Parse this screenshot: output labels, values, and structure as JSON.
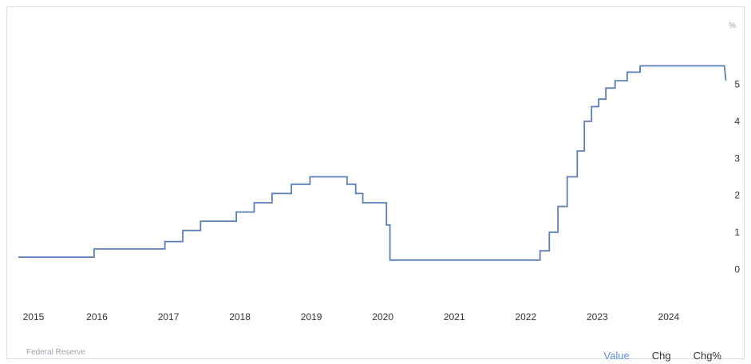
{
  "chart_data": {
    "type": "line",
    "step": true,
    "unit": "%",
    "x_ticks": [
      "2015",
      "2016",
      "2017",
      "2018",
      "2019",
      "2020",
      "2021",
      "2022",
      "2023",
      "2024"
    ],
    "y_ticks": [
      "0",
      "1",
      "2",
      "3",
      "4",
      "5"
    ],
    "xlim": [
      2014.9,
      2024.85
    ],
    "ylim": [
      -0.1,
      5.9
    ],
    "grid": false,
    "color": "#5b7fb8",
    "series": [
      {
        "points": [
          [
            2014.9,
            0.33
          ],
          [
            2015.96,
            0.33
          ],
          [
            2015.96,
            0.55
          ],
          [
            2016.95,
            0.55
          ],
          [
            2016.95,
            0.75
          ],
          [
            2017.2,
            0.75
          ],
          [
            2017.2,
            1.05
          ],
          [
            2017.45,
            1.05
          ],
          [
            2017.45,
            1.3
          ],
          [
            2017.95,
            1.3
          ],
          [
            2017.95,
            1.55
          ],
          [
            2018.2,
            1.55
          ],
          [
            2018.2,
            1.8
          ],
          [
            2018.45,
            1.8
          ],
          [
            2018.45,
            2.05
          ],
          [
            2018.72,
            2.05
          ],
          [
            2018.72,
            2.3
          ],
          [
            2018.98,
            2.3
          ],
          [
            2018.98,
            2.5
          ],
          [
            2019.5,
            2.5
          ],
          [
            2019.5,
            2.3
          ],
          [
            2019.62,
            2.3
          ],
          [
            2019.62,
            2.05
          ],
          [
            2019.72,
            2.05
          ],
          [
            2019.72,
            1.8
          ],
          [
            2020.05,
            1.8
          ],
          [
            2020.05,
            1.2
          ],
          [
            2020.1,
            1.2
          ],
          [
            2020.1,
            0.25
          ],
          [
            2022.2,
            0.25
          ],
          [
            2022.2,
            0.5
          ],
          [
            2022.33,
            0.5
          ],
          [
            2022.33,
            1.0
          ],
          [
            2022.45,
            1.0
          ],
          [
            2022.45,
            1.7
          ],
          [
            2022.58,
            1.7
          ],
          [
            2022.58,
            2.5
          ],
          [
            2022.72,
            2.5
          ],
          [
            2022.72,
            3.2
          ],
          [
            2022.82,
            3.2
          ],
          [
            2022.82,
            4.0
          ],
          [
            2022.92,
            4.0
          ],
          [
            2022.92,
            4.4
          ],
          [
            2023.02,
            4.4
          ],
          [
            2023.02,
            4.6
          ],
          [
            2023.12,
            4.6
          ],
          [
            2023.12,
            4.9
          ],
          [
            2023.25,
            4.9
          ],
          [
            2023.25,
            5.1
          ],
          [
            2023.42,
            5.1
          ],
          [
            2023.42,
            5.33
          ],
          [
            2023.6,
            5.33
          ],
          [
            2023.6,
            5.5
          ],
          [
            2024.78,
            5.5
          ],
          [
            2024.8,
            5.1
          ]
        ]
      }
    ]
  },
  "source_label": "Federal Reserve",
  "tabs": [
    {
      "label": "Value",
      "active": true
    },
    {
      "label": "Chg",
      "active": false
    },
    {
      "label": "Chg%",
      "active": false
    }
  ]
}
